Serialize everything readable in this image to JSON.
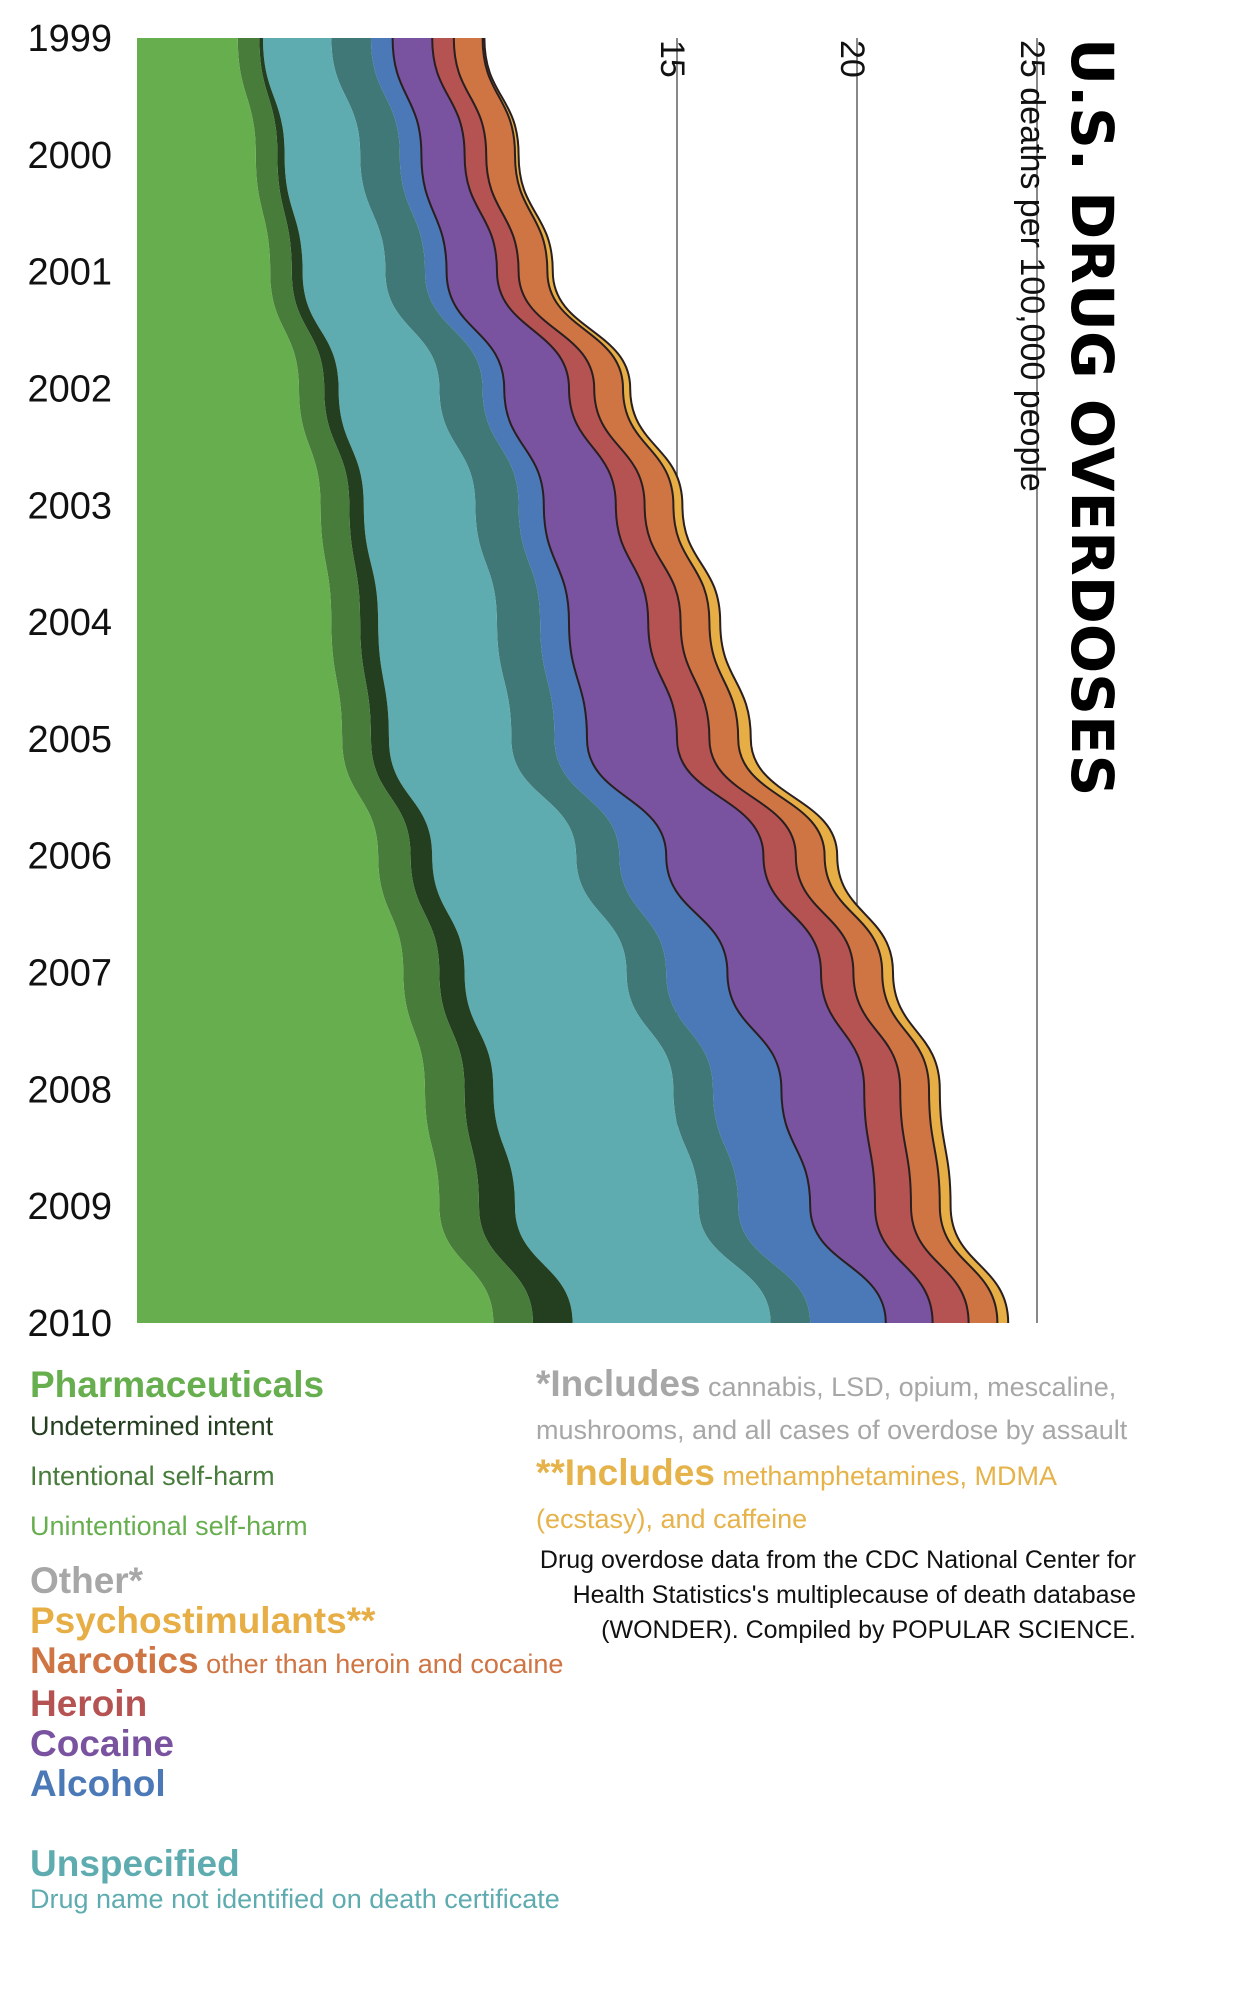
{
  "title": "U.S. DRUG OVERDOSES",
  "axis": {
    "tick_15": "15",
    "tick_20": "20",
    "tick_25": "25 deaths per 100,000 people"
  },
  "colors": {
    "pharma_unintentional": "#67ae4f",
    "pharma_intentional": "#477c3b",
    "pharma_undetermined": "#243f1f",
    "unspecified": "#5eacb0",
    "other": "#3f7877",
    "alcohol": "#4b78b7",
    "cocaine": "#7a53a0",
    "heroin": "#b55353",
    "narcotics": "#cf7443",
    "psychostimulants": "#e6ae45",
    "outline": "#2a1f20"
  },
  "legend": {
    "pharmaceuticals": "Pharmaceuticals",
    "undetermined": "Undetermined intent",
    "intentional": "Intentional self-harm",
    "unintentional": "Unintentional self-harm",
    "other": "Other*",
    "psychostimulants": "Psychostimulants**",
    "narcotics": "Narcotics",
    "narcotics_note": " other than heroin and cocaine",
    "heroin": "Heroin",
    "cocaine": "Cocaine",
    "alcohol": "Alcohol",
    "unspecified": "Unspecified",
    "unspecified_note": "Drug name not identified on death certificate"
  },
  "notes": {
    "other_lead": "*Includes",
    "other_text": " cannabis, LSD, opium, mescaline, mushrooms, and all cases of overdose by assault",
    "psycho_lead": "**Includes",
    "psycho_text": " methamphetamines, MDMA (ecstasy), and caffeine",
    "source": "Drug overdose data from the CDC National Center for Health Statistics's multiplecause of death database (WONDER). Compiled by POPULAR SCIENCE."
  },
  "chart_data": {
    "type": "area",
    "orientation": "horizontal-stacked",
    "title": "U.S. DRUG OVERDOSES",
    "xlabel": "deaths per 100,000 people",
    "x_ticks": [
      15,
      20,
      25
    ],
    "categories": [
      "1999",
      "2000",
      "2001",
      "2002",
      "2003",
      "2004",
      "2005",
      "2006",
      "2007",
      "2008",
      "2009",
      "2010"
    ],
    "series": [
      {
        "name": "Unintentional self-harm",
        "values": [
          2.8,
          3.3,
          3.7,
          4.5,
          5.1,
          5.4,
          5.7,
          6.7,
          7.4,
          8.0,
          8.4,
          9.9
        ]
      },
      {
        "name": "Intentional self-harm",
        "values": [
          0.6,
          0.6,
          0.6,
          0.7,
          0.8,
          0.8,
          0.8,
          0.9,
          1.0,
          1.1,
          1.1,
          1.1
        ]
      },
      {
        "name": "Undetermined intent",
        "values": [
          0.1,
          0.2,
          0.3,
          0.4,
          0.4,
          0.5,
          0.5,
          0.6,
          0.7,
          0.8,
          1.0,
          1.1
        ]
      },
      {
        "name": "Unspecified",
        "values": [
          1.9,
          2.1,
          2.3,
          2.8,
          3.1,
          3.3,
          3.4,
          4.0,
          4.5,
          5.0,
          5.1,
          5.5
        ]
      },
      {
        "name": "Other*",
        "values": [
          1.1,
          1.1,
          1.1,
          1.2,
          1.2,
          1.2,
          1.2,
          1.2,
          1.1,
          1.1,
          1.1,
          1.1
        ]
      },
      {
        "name": "Alcohol",
        "values": [
          0.6,
          0.6,
          0.6,
          0.6,
          0.7,
          0.8,
          0.9,
          1.3,
          1.7,
          1.9,
          2.0,
          2.1
        ]
      },
      {
        "name": "Cocaine",
        "values": [
          1.1,
          1.2,
          1.4,
          1.8,
          2.0,
          2.2,
          2.5,
          2.7,
          2.6,
          2.3,
          1.8,
          1.3
        ]
      },
      {
        "name": "Heroin",
        "values": [
          0.6,
          0.6,
          0.6,
          0.7,
          0.8,
          0.9,
          0.9,
          0.9,
          0.9,
          1.0,
          1.0,
          1.0
        ]
      },
      {
        "name": "Narcotics other than heroin and cocaine",
        "values": [
          0.8,
          0.8,
          0.8,
          0.8,
          0.8,
          0.8,
          0.8,
          0.8,
          0.8,
          0.8,
          0.8,
          0.8
        ]
      },
      {
        "name": "Psychostimulants**",
        "values": [
          0.05,
          0.1,
          0.15,
          0.2,
          0.25,
          0.3,
          0.35,
          0.35,
          0.3,
          0.3,
          0.3,
          0.3
        ]
      }
    ]
  }
}
